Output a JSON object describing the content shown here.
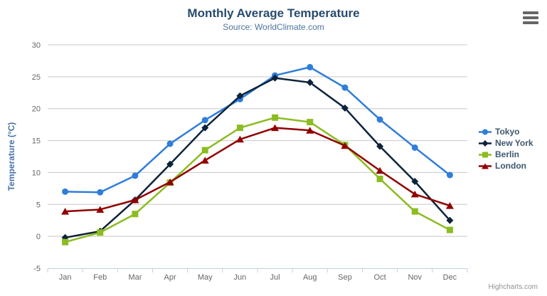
{
  "credit": "Highcharts.com",
  "menu": {
    "icon": "hamburger-icon"
  },
  "colors": {
    "grid": "#C8C8C8",
    "axis_line": "#C0D0E0",
    "axis_label": "#666666",
    "title": "#274b6d",
    "subtitle": "#4d759e",
    "ylabel": "#4572A7",
    "legend_text": "#3E576F",
    "credit": "#909090"
  },
  "chart_data": {
    "type": "line",
    "title": "Monthly Average Temperature",
    "subtitle": "Source: WorldClimate.com",
    "xlabel": "",
    "ylabel": "Temperature (°C)",
    "categories": [
      "Jan",
      "Feb",
      "Mar",
      "Apr",
      "May",
      "Jun",
      "Jul",
      "Aug",
      "Sep",
      "Oct",
      "Nov",
      "Dec"
    ],
    "ylim": [
      -5,
      30
    ],
    "yticks": [
      -5,
      0,
      5,
      10,
      15,
      20,
      25,
      30
    ],
    "grid": true,
    "legend_position": "right",
    "series": [
      {
        "name": "Tokyo",
        "color": "#2f7ed8",
        "marker": "circle",
        "values": [
          7.0,
          6.9,
          9.5,
          14.5,
          18.2,
          21.5,
          25.2,
          26.5,
          23.3,
          18.3,
          13.9,
          9.6
        ]
      },
      {
        "name": "New York",
        "color": "#0d233a",
        "marker": "diamond",
        "values": [
          -0.2,
          0.8,
          5.7,
          11.3,
          17.0,
          22.0,
          24.8,
          24.1,
          20.1,
          14.1,
          8.6,
          2.5
        ]
      },
      {
        "name": "Berlin",
        "color": "#8bbc21",
        "marker": "square",
        "values": [
          -0.9,
          0.6,
          3.5,
          8.4,
          13.5,
          17.0,
          18.6,
          17.9,
          14.3,
          9.0,
          3.9,
          1.0
        ]
      },
      {
        "name": "London",
        "color": "#910000",
        "marker": "triangle",
        "values": [
          3.9,
          4.2,
          5.7,
          8.5,
          11.9,
          15.2,
          17.0,
          16.6,
          14.2,
          10.3,
          6.6,
          4.8
        ]
      }
    ]
  }
}
